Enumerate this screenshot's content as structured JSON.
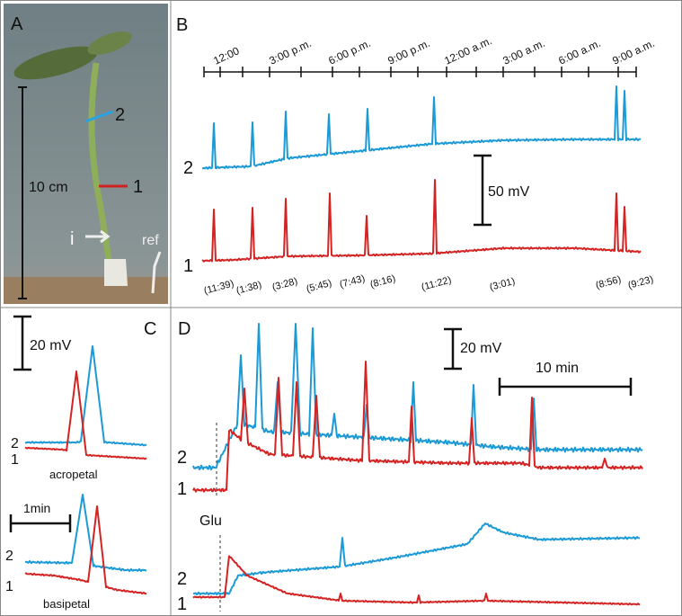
{
  "panels": [
    {
      "label": "A",
      "scale": "10 cm",
      "positions": [
        "2",
        "1"
      ],
      "arrow": "i",
      "reference": "ref"
    },
    {
      "label": "B",
      "time_axis": [
        "12:00",
        "3:00 p.m.",
        "6:00 p.m.",
        "9:00 p.m.",
        "12:00 a.m.",
        "3:00 a.m.",
        "6:00 a.m.",
        "9:00 a.m."
      ],
      "traces": [
        "2",
        "1"
      ],
      "scale": "50 mV",
      "spike_times": [
        "(11:39)",
        "(1:38)",
        "(3:28)",
        "(5:45)",
        "(7:43)",
        "(8:16)",
        "(11:22)",
        "(3:01)",
        "(8:56)",
        "(9:23)"
      ]
    },
    {
      "label": "C",
      "scale_voltage": "20 mV",
      "traces_top": [
        "2",
        "1"
      ],
      "direction_top": "acropetal",
      "scale_time": "1min",
      "traces_bottom": [
        "2",
        "1"
      ],
      "direction_bottom": "basipetal"
    },
    {
      "label": "D",
      "scale_voltage": "20 mV",
      "scale_time": "10 min",
      "traces_top": [
        "2",
        "1"
      ],
      "stimulus": "Glu",
      "traces_bottom": [
        "2",
        "1"
      ]
    }
  ]
}
